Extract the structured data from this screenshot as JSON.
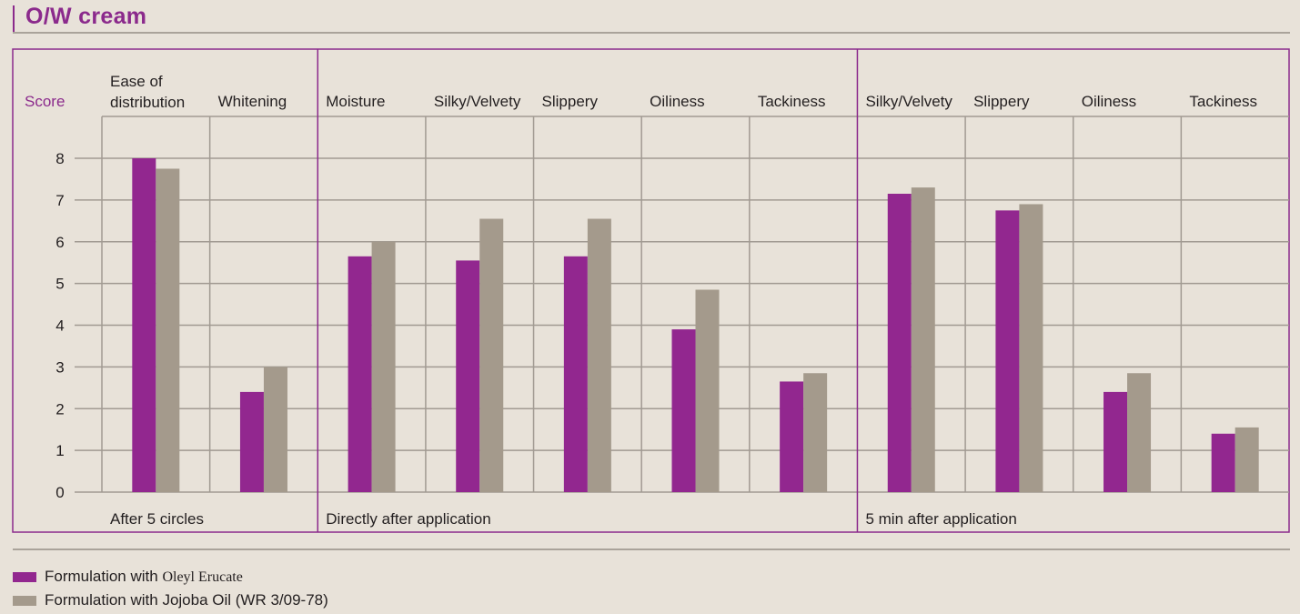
{
  "title": "O/W cream",
  "colors": {
    "accent": "#8b2a8c",
    "series_oleyl": "#92278f",
    "series_jojoba": "#a49a8c",
    "grid": "#a19a92",
    "background": "#e8e2d9"
  },
  "chart_data": {
    "type": "bar",
    "ylabel": "Score",
    "ylim": [
      0,
      8
    ],
    "yticks": [
      0,
      1,
      2,
      3,
      4,
      5,
      6,
      7,
      8
    ],
    "grid": true,
    "legend_position": "bottom-left",
    "categories": [
      {
        "label": [
          "Ease of",
          "distribution"
        ],
        "group": "After 5 circles"
      },
      {
        "label": [
          "Whitening"
        ],
        "group": "After 5 circles"
      },
      {
        "label": [
          "Moisture"
        ],
        "group": "Directly after application"
      },
      {
        "label": [
          "Silky/Velvety"
        ],
        "group": "Directly after application"
      },
      {
        "label": [
          "Slippery"
        ],
        "group": "Directly after application"
      },
      {
        "label": [
          "Oiliness"
        ],
        "group": "Directly after application"
      },
      {
        "label": [
          "Tackiness"
        ],
        "group": "Directly after application"
      },
      {
        "label": [
          "Silky/Velvety"
        ],
        "group": "5 min after application"
      },
      {
        "label": [
          "Slippery"
        ],
        "group": "5 min after application"
      },
      {
        "label": [
          "Oiliness"
        ],
        "group": "5 min after application"
      },
      {
        "label": [
          "Tackiness"
        ],
        "group": "5 min after application"
      }
    ],
    "groups": [
      {
        "label": "After 5 circles",
        "start": 0,
        "count": 2
      },
      {
        "label": "Directly after application",
        "start": 2,
        "count": 5
      },
      {
        "label": "5 min after application",
        "start": 7,
        "count": 4
      }
    ],
    "series": [
      {
        "name_prefix": "Formulation with ",
        "name_product": "Oleyl Erucate",
        "color": "#92278f",
        "values": [
          8.0,
          2.4,
          5.65,
          5.55,
          5.65,
          3.9,
          2.65,
          7.15,
          6.75,
          2.4,
          1.4
        ]
      },
      {
        "name_prefix": "Formulation with ",
        "name_product": "Jojoba Oil (WR 3/09-78)",
        "color": "#a49a8c",
        "values": [
          7.75,
          3.0,
          6.0,
          6.55,
          6.55,
          4.85,
          2.85,
          7.3,
          6.9,
          2.85,
          1.55
        ]
      }
    ]
  }
}
